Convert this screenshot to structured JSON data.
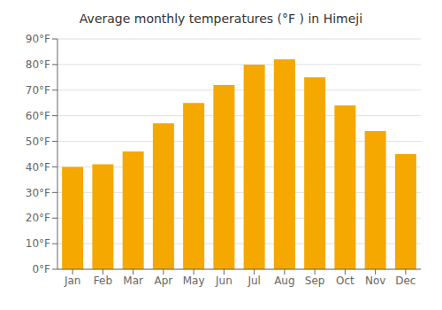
{
  "chart_data": {
    "type": "bar",
    "title": "Average monthly temperatures (°F ) in Himeji",
    "categories": [
      "Jan",
      "Feb",
      "Mar",
      "Apr",
      "May",
      "Jun",
      "Jul",
      "Aug",
      "Sep",
      "Oct",
      "Nov",
      "Dec"
    ],
    "values": [
      40,
      41,
      46,
      57,
      65,
      72,
      80,
      82,
      75,
      64,
      54,
      45
    ],
    "color": "#F5A800",
    "ylim": [
      0,
      90
    ],
    "yticks": [
      {
        "value": 0,
        "label": "0°F"
      },
      {
        "value": 10,
        "label": "10°F"
      },
      {
        "value": 20,
        "label": "20°F"
      },
      {
        "value": 30,
        "label": "30°F"
      },
      {
        "value": 40,
        "label": "40°F"
      },
      {
        "value": 50,
        "label": "50°F"
      },
      {
        "value": 60,
        "label": "60°F"
      },
      {
        "value": 70,
        "label": "70°F"
      },
      {
        "value": 80,
        "label": "80°F"
      },
      {
        "value": 90,
        "label": "90°F"
      }
    ],
    "grid": true
  }
}
